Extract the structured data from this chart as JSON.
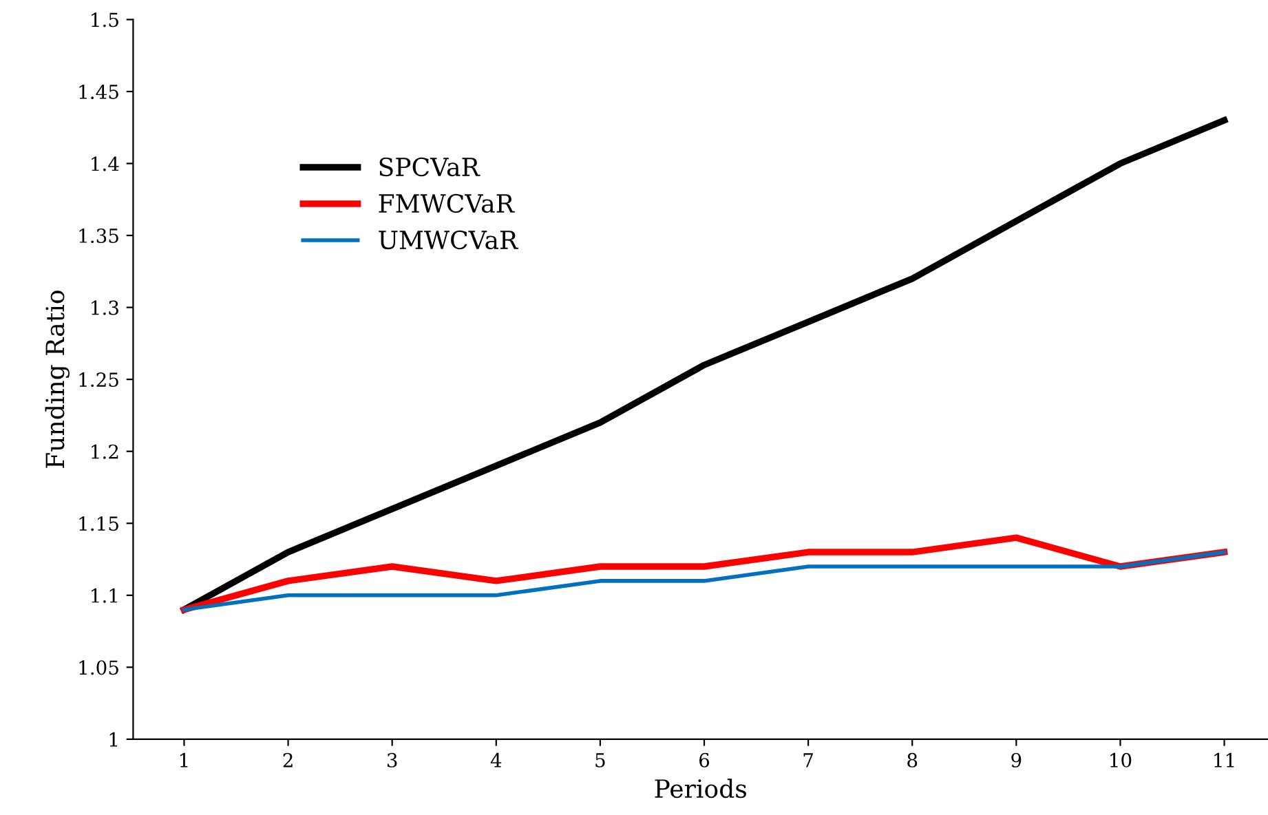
{
  "chart_data": {
    "type": "line",
    "xlabel": "Periods",
    "ylabel": "Funding Ratio",
    "categories": [
      "1",
      "2",
      "3",
      "4",
      "5",
      "6",
      "7",
      "8",
      "9",
      "10",
      "11"
    ],
    "series": [
      {
        "name": "SPCVaR",
        "color": "#000000",
        "values": [
          1.09,
          1.13,
          1.16,
          1.19,
          1.22,
          1.26,
          1.29,
          1.32,
          1.36,
          1.4,
          1.43
        ]
      },
      {
        "name": "FMWCVaR",
        "color": "#ff0000",
        "values": [
          1.09,
          1.11,
          1.12,
          1.11,
          1.12,
          1.12,
          1.13,
          1.13,
          1.14,
          1.12,
          1.13
        ]
      },
      {
        "name": "UMWCVaR",
        "color": "#0070c0",
        "values": [
          1.09,
          1.1,
          1.1,
          1.1,
          1.11,
          1.11,
          1.12,
          1.12,
          1.12,
          1.12,
          1.13
        ]
      }
    ],
    "ylim": [
      1,
      1.5
    ],
    "yticks": [
      1,
      1.05,
      1.1,
      1.15,
      1.2,
      1.25,
      1.3,
      1.35,
      1.4,
      1.45,
      1.5
    ],
    "grid": false,
    "legend": "top left",
    "marker": "none",
    "line_style": "solid"
  }
}
